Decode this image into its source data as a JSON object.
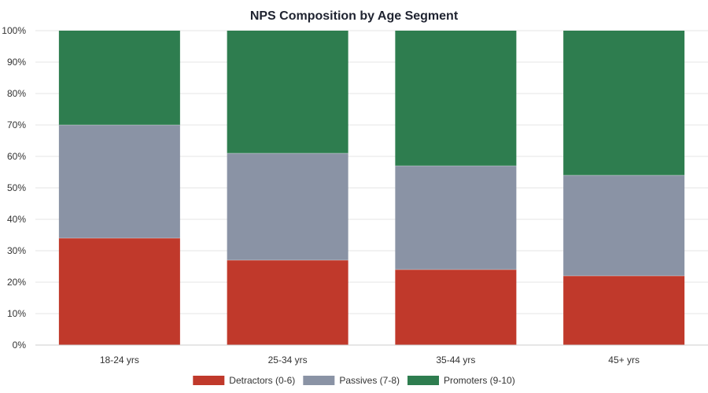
{
  "chart_data": {
    "type": "bar",
    "stacked": true,
    "title": "NPS Composition by Age Segment",
    "xlabel": "",
    "ylabel": "",
    "categories": [
      "18-24 yrs",
      "25-34 yrs",
      "35-44 yrs",
      "45+ yrs"
    ],
    "series": [
      {
        "name": "Detractors (0-6)",
        "color": "#c0392b",
        "values": [
          34,
          27,
          24,
          22
        ]
      },
      {
        "name": "Passives (7-8)",
        "color": "#8a93a5",
        "values": [
          36,
          34,
          33,
          32
        ]
      },
      {
        "name": "Promoters (9-10)",
        "color": "#2e7d4f",
        "values": [
          30,
          39,
          43,
          46
        ]
      }
    ],
    "ylim": [
      0,
      100
    ],
    "yticks": [
      0,
      10,
      20,
      30,
      40,
      50,
      60,
      70,
      80,
      90,
      100
    ],
    "ytick_labels": [
      "0%",
      "10%",
      "20%",
      "30%",
      "40%",
      "50%",
      "60%",
      "70%",
      "80%",
      "90%",
      "100%"
    ],
    "grid": true,
    "legend": "bottom-center"
  }
}
